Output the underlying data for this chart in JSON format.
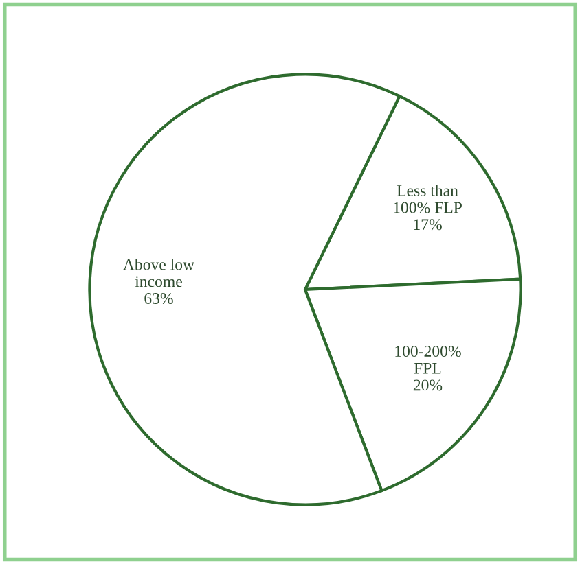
{
  "chart_data": {
    "type": "pie",
    "categories": [
      "Less than\n100% FLP",
      "100-200%\nFPL",
      "Above low\nincome"
    ],
    "values": [
      17,
      20,
      63
    ],
    "value_labels": [
      "17%",
      "20%",
      "63%"
    ],
    "colors": [
      "#ffffff",
      "#ffffff",
      "#ffffff"
    ]
  }
}
